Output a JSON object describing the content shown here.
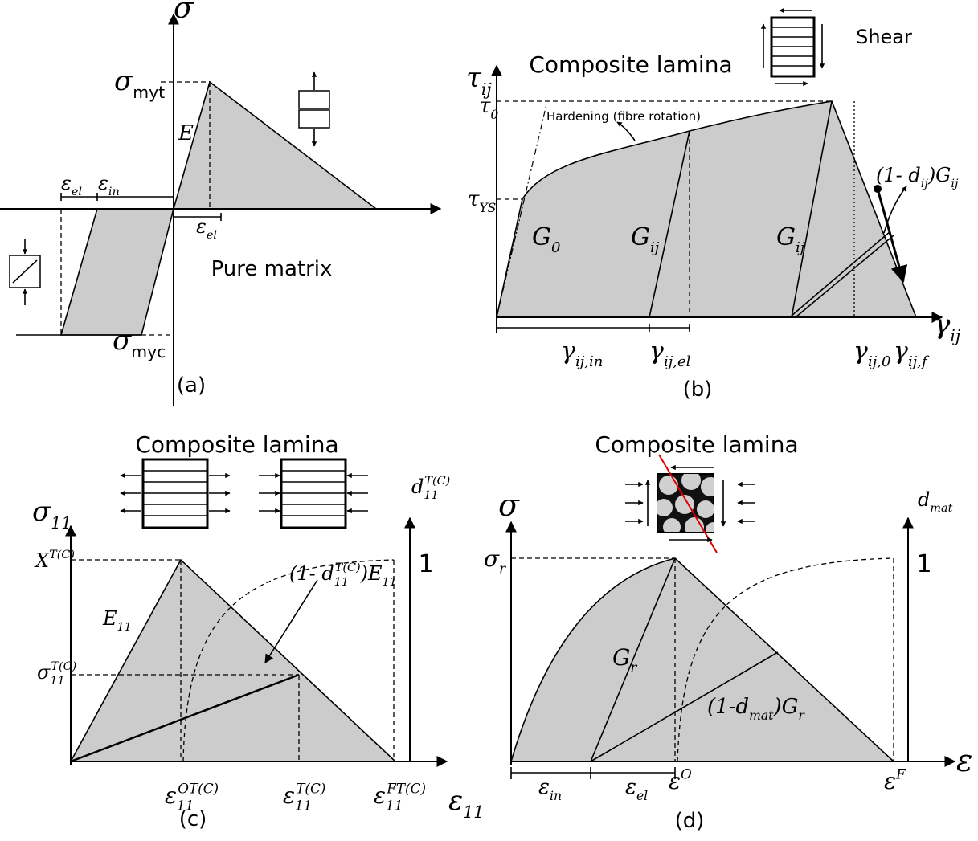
{
  "panels": [
    {
      "caption": "(a)",
      "annotation": "Pure matrix",
      "labels": [
        [
          {
            "text": "σ"
          }
        ],
        [
          {
            "text": "σ"
          },
          {
            "text": "myt",
            "pos": "sub",
            "upright": true
          }
        ],
        [
          {
            "text": "E"
          }
        ],
        [
          {
            "text": "ε"
          },
          {
            "text": "el",
            "pos": "sub"
          }
        ],
        [
          {
            "text": "ε"
          },
          {
            "text": "in",
            "pos": "sub"
          }
        ],
        [
          {
            "text": "ε"
          },
          {
            "text": "el",
            "pos": "sub"
          }
        ],
        [
          {
            "text": "σ"
          },
          {
            "text": "myc",
            "pos": "sub",
            "upright": true
          }
        ]
      ]
    },
    {
      "caption": "(b)",
      "title": "Composite lamina",
      "icon_label": "Shear",
      "annotation": "Hardening (fibre rotation)",
      "labels": [
        [
          {
            "text": "τ"
          },
          {
            "text": "ij",
            "pos": "sub"
          }
        ],
        [
          {
            "text": "τ"
          },
          {
            "text": "0",
            "pos": "sub"
          }
        ],
        [
          {
            "text": "τ"
          },
          {
            "text": "YS",
            "pos": "sub"
          }
        ],
        [
          {
            "text": "G"
          },
          {
            "text": "0",
            "pos": "sub"
          }
        ],
        [
          {
            "text": "G"
          },
          {
            "text": "ij",
            "pos": "sub"
          }
        ],
        [
          {
            "text": "G"
          },
          {
            "text": "ij",
            "pos": "sub"
          }
        ],
        [
          {
            "text": "(1- d"
          },
          {
            "text": "ij",
            "pos": "sub"
          },
          {
            "text": ")G"
          },
          {
            "text": "ij",
            "pos": "sub"
          }
        ],
        [
          {
            "text": "γ"
          },
          {
            "text": "ij,in",
            "pos": "sub"
          }
        ],
        [
          {
            "text": "γ"
          },
          {
            "text": "ij,el",
            "pos": "sub"
          }
        ],
        [
          {
            "text": "γ"
          },
          {
            "text": "ij,0",
            "pos": "sub"
          }
        ],
        [
          {
            "text": "γ"
          },
          {
            "text": "ij,f",
            "pos": "sub"
          }
        ],
        [
          {
            "text": "γ"
          },
          {
            "text": "ij",
            "pos": "sub"
          }
        ]
      ]
    },
    {
      "caption": "(c)",
      "title": "Composite lamina",
      "axis_max": "1",
      "labels": [
        [
          {
            "text": "σ"
          },
          {
            "text": "11",
            "pos": "sub"
          }
        ],
        [
          {
            "text": "d"
          },
          {
            "text": "11",
            "pos": "sub"
          },
          {
            "text": "T(C)",
            "pos": "sup"
          }
        ],
        [
          {
            "text": "X"
          },
          {
            "text": "T(C)",
            "pos": "sup"
          }
        ],
        [
          {
            "text": "σ"
          },
          {
            "text": "11",
            "pos": "sub"
          },
          {
            "text": "T(C)",
            "pos": "sup"
          }
        ],
        [
          {
            "text": "E"
          },
          {
            "text": "11",
            "pos": "sub"
          }
        ],
        [
          {
            "text": "(1- d"
          },
          {
            "text": "11",
            "pos": "sub"
          },
          {
            "text": "T(C)",
            "pos": "sup"
          },
          {
            "text": ")E"
          },
          {
            "text": "11",
            "pos": "sub"
          }
        ],
        [
          {
            "text": "ε"
          },
          {
            "text": "11",
            "pos": "sub"
          },
          {
            "text": "OT(C)",
            "pos": "sup"
          }
        ],
        [
          {
            "text": "ε"
          },
          {
            "text": "11",
            "pos": "sub"
          },
          {
            "text": "T(C)",
            "pos": "sup"
          }
        ],
        [
          {
            "text": "ε"
          },
          {
            "text": "11",
            "pos": "sub"
          },
          {
            "text": "FT(C)",
            "pos": "sup"
          }
        ],
        [
          {
            "text": "ε"
          },
          {
            "text": "11",
            "pos": "sub"
          }
        ]
      ]
    },
    {
      "caption": "(d)",
      "title": "Composite lamina",
      "axis_max": "1",
      "labels": [
        [
          {
            "text": "σ"
          }
        ],
        [
          {
            "text": "d"
          },
          {
            "text": "mat",
            "pos": "sub"
          }
        ],
        [
          {
            "text": "σ"
          },
          {
            "text": "r",
            "pos": "sub"
          }
        ],
        [
          {
            "text": "G"
          },
          {
            "text": "r",
            "pos": "sub"
          }
        ],
        [
          {
            "text": "(1-d"
          },
          {
            "text": "mat",
            "pos": "sub"
          },
          {
            "text": ")G"
          },
          {
            "text": "r",
            "pos": "sub"
          }
        ],
        [
          {
            "text": "ε"
          },
          {
            "text": "in",
            "pos": "sub"
          }
        ],
        [
          {
            "text": "ε"
          },
          {
            "text": "el",
            "pos": "sub"
          }
        ],
        [
          {
            "text": "ε"
          },
          {
            "text": "O",
            "pos": "sup"
          }
        ],
        [
          {
            "text": "ε"
          },
          {
            "text": "F",
            "pos": "sup"
          }
        ],
        [
          {
            "text": "ε"
          }
        ]
      ]
    }
  ]
}
